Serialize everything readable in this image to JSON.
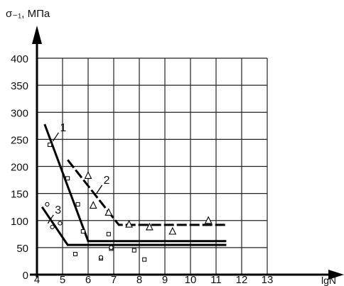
{
  "chart_data": {
    "type": "scatter",
    "title": "",
    "ylabel": "σ₋₁, МПа",
    "xlabel": "lgN",
    "xlim": [
      4,
      13
    ],
    "ylim": [
      0,
      400
    ],
    "x_ticks": [
      "4",
      "5",
      "6",
      "7",
      "8",
      "9",
      "10",
      "11",
      "12",
      "13"
    ],
    "y_ticks": [
      "0",
      "50",
      "100",
      "150",
      "200",
      "250",
      "300",
      "350",
      "400"
    ],
    "grid": true,
    "series": [
      {
        "name": "1",
        "marker": "square",
        "points": [
          [
            4.5,
            240
          ],
          [
            5.2,
            178
          ],
          [
            5.6,
            130
          ],
          [
            5.8,
            80
          ],
          [
            6.8,
            75
          ],
          [
            6.9,
            48
          ],
          [
            7.8,
            45
          ],
          [
            8.2,
            28
          ],
          [
            6.5,
            30
          ],
          [
            5.5,
            38
          ]
        ],
        "curve": [
          [
            4.3,
            278
          ],
          [
            6.0,
            62
          ],
          [
            11.4,
            62
          ]
        ],
        "curve_style": "solid"
      },
      {
        "name": "2",
        "marker": "triangle",
        "points": [
          [
            6.0,
            183
          ],
          [
            6.2,
            128
          ],
          [
            6.8,
            115
          ],
          [
            7.6,
            93
          ],
          [
            8.4,
            88
          ],
          [
            9.3,
            80
          ],
          [
            10.7,
            100
          ]
        ],
        "curve": [
          [
            5.2,
            212
          ],
          [
            7.2,
            92
          ],
          [
            11.4,
            92
          ]
        ],
        "curve_style": "dash"
      },
      {
        "name": "3",
        "marker": "circle",
        "points": [
          [
            4.4,
            130
          ],
          [
            4.6,
            88
          ],
          [
            4.9,
            95
          ],
          [
            6.5,
            32
          ],
          [
            6.9,
            50
          ]
        ],
        "curve": [
          [
            4.2,
            125
          ],
          [
            5.2,
            55
          ],
          [
            11.4,
            55
          ]
        ],
        "curve_style": "solid"
      }
    ],
    "curve_labels": [
      {
        "text": "1",
        "x": 4.9,
        "y": 265
      },
      {
        "text": "2",
        "x": 6.6,
        "y": 168
      },
      {
        "text": "3",
        "x": 4.7,
        "y": 113
      }
    ]
  }
}
